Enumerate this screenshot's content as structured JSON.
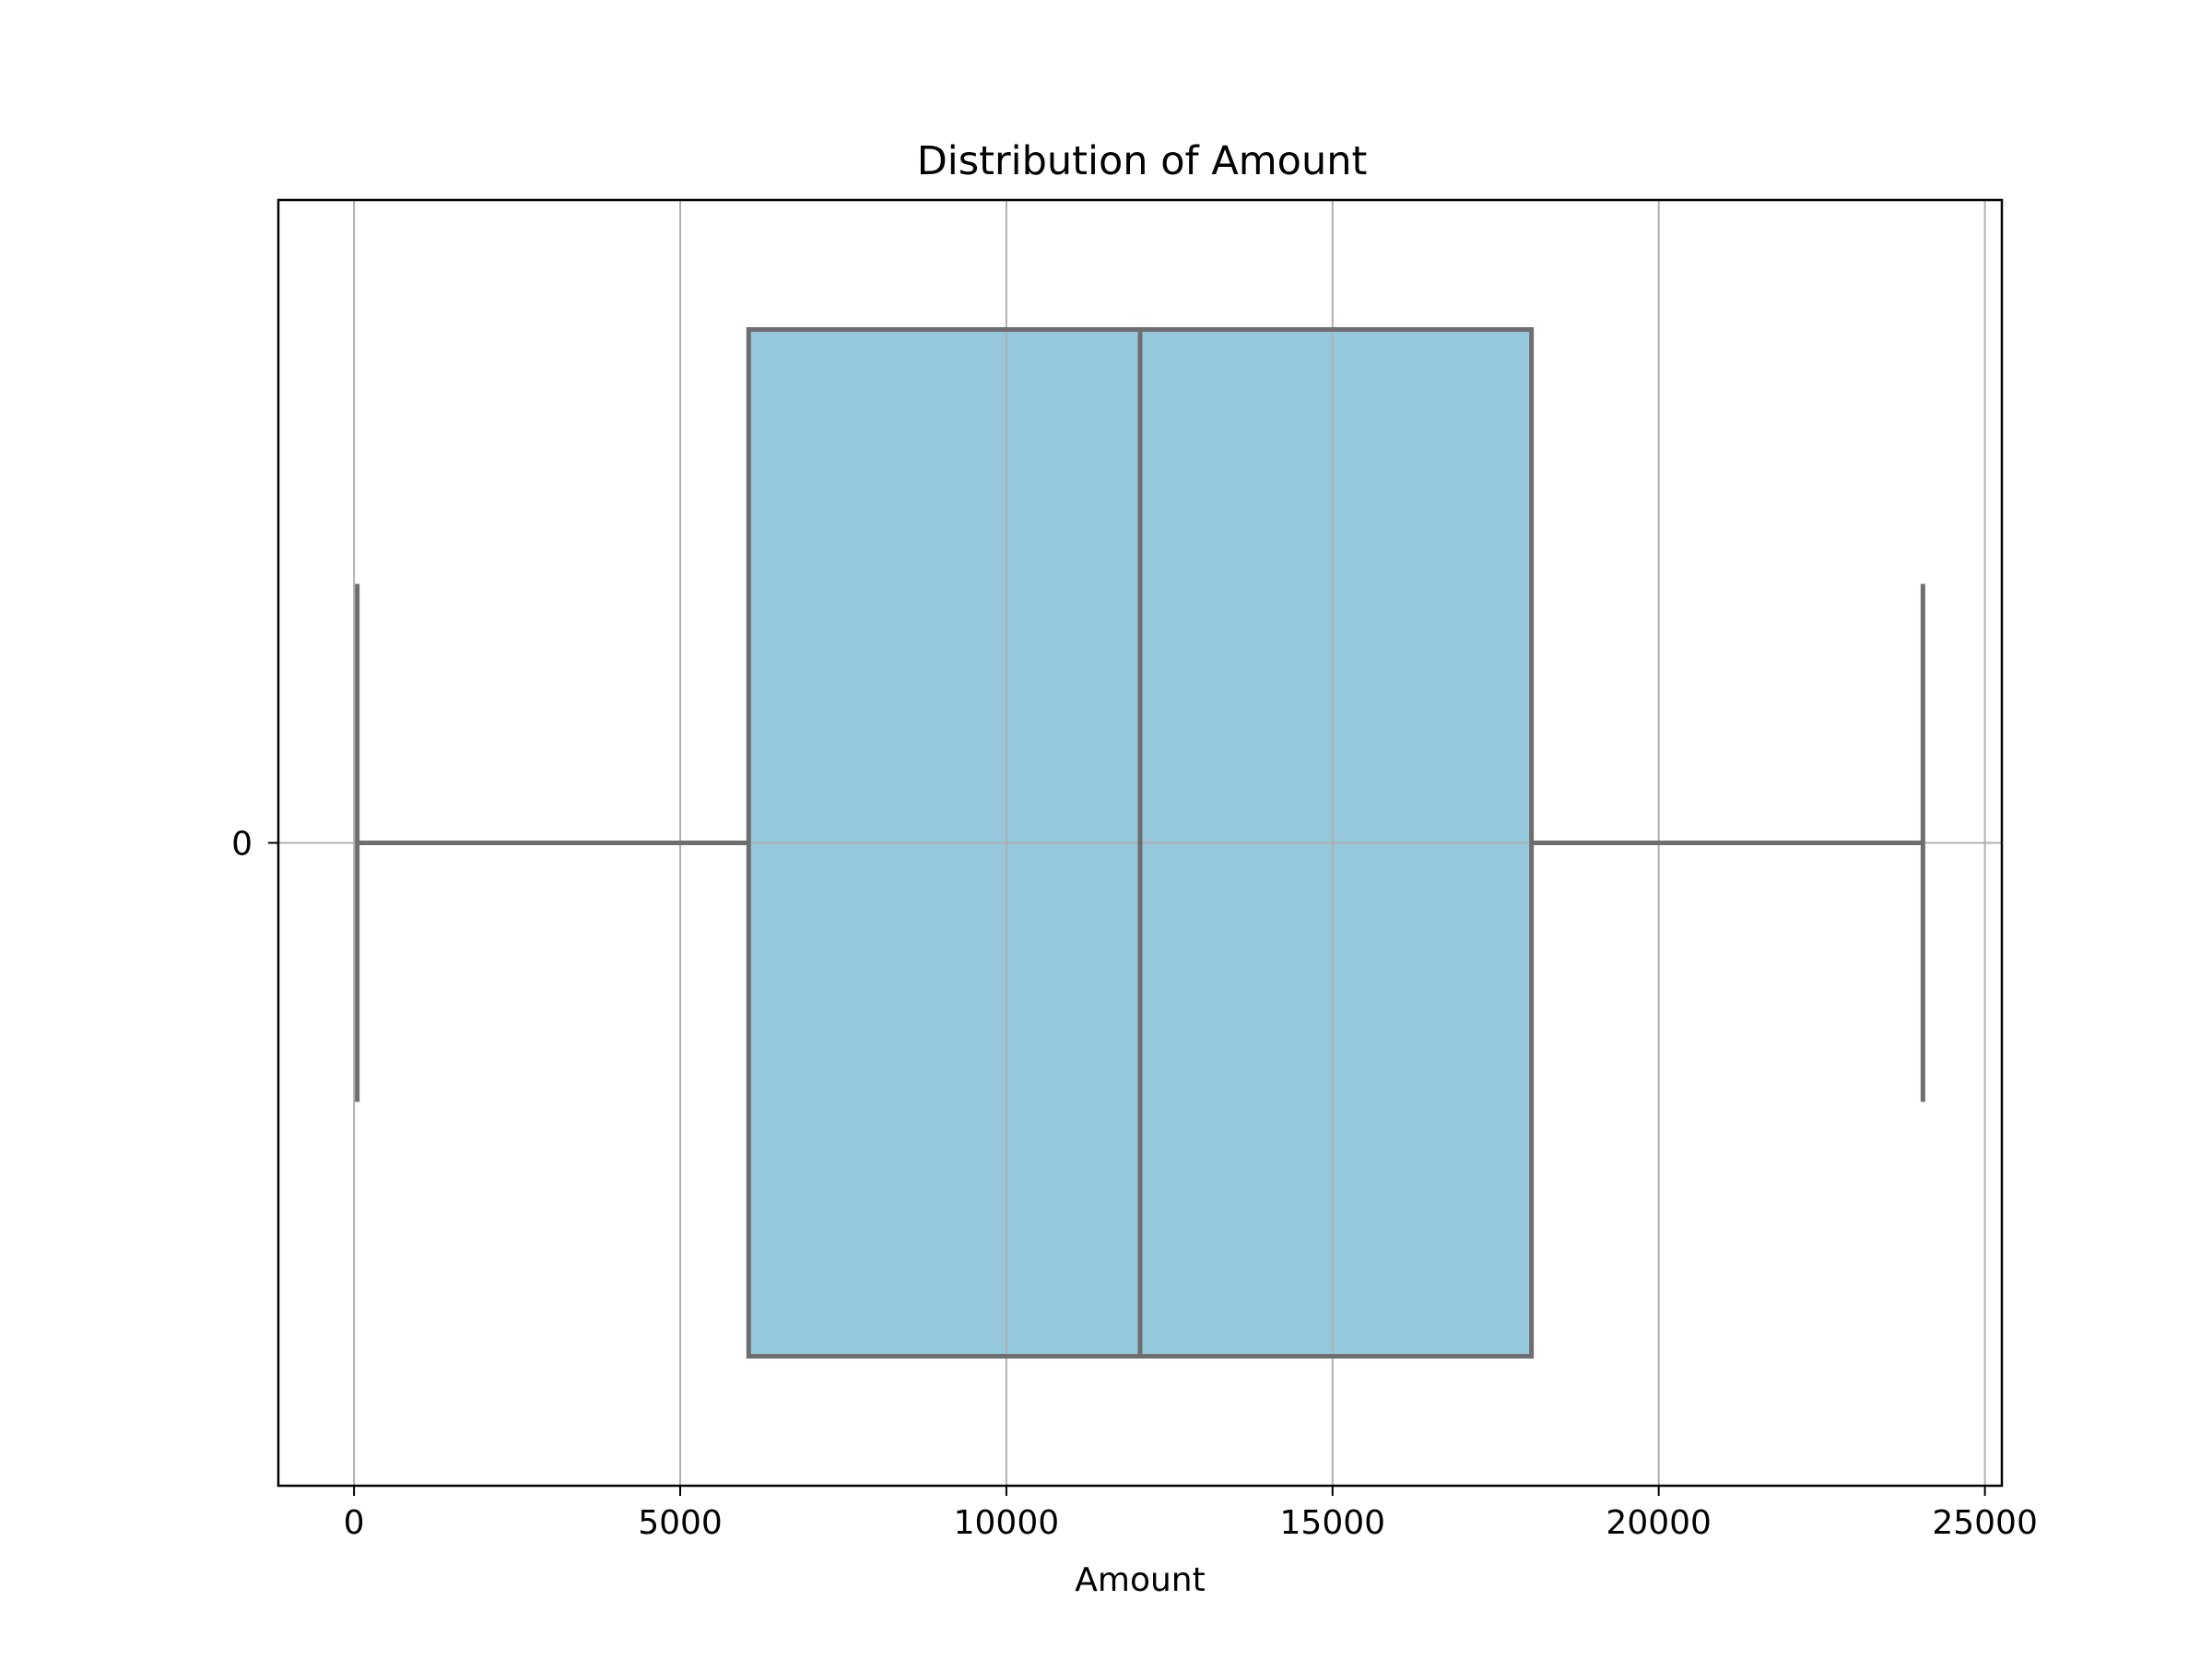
{
  "chart_data": {
    "type": "box",
    "orientation": "horizontal",
    "title": "Distribution of Amount",
    "xlabel": "Amount",
    "ylabel": "",
    "categories": [
      "0"
    ],
    "xlim": [
      -1160,
      25260
    ],
    "x_ticks": [
      0,
      5000,
      10000,
      15000,
      20000,
      25000
    ],
    "grid": true,
    "legend": "none",
    "box": {
      "category": "0",
      "whisker_low": 50,
      "q1": 6050,
      "median": 12050,
      "q3": 18050,
      "whisker_high": 24050
    },
    "colors": {
      "box_fill": "#95c8dd",
      "line": "#6e6e6e",
      "grid": "#b0b0b0",
      "frame": "#000000"
    }
  }
}
